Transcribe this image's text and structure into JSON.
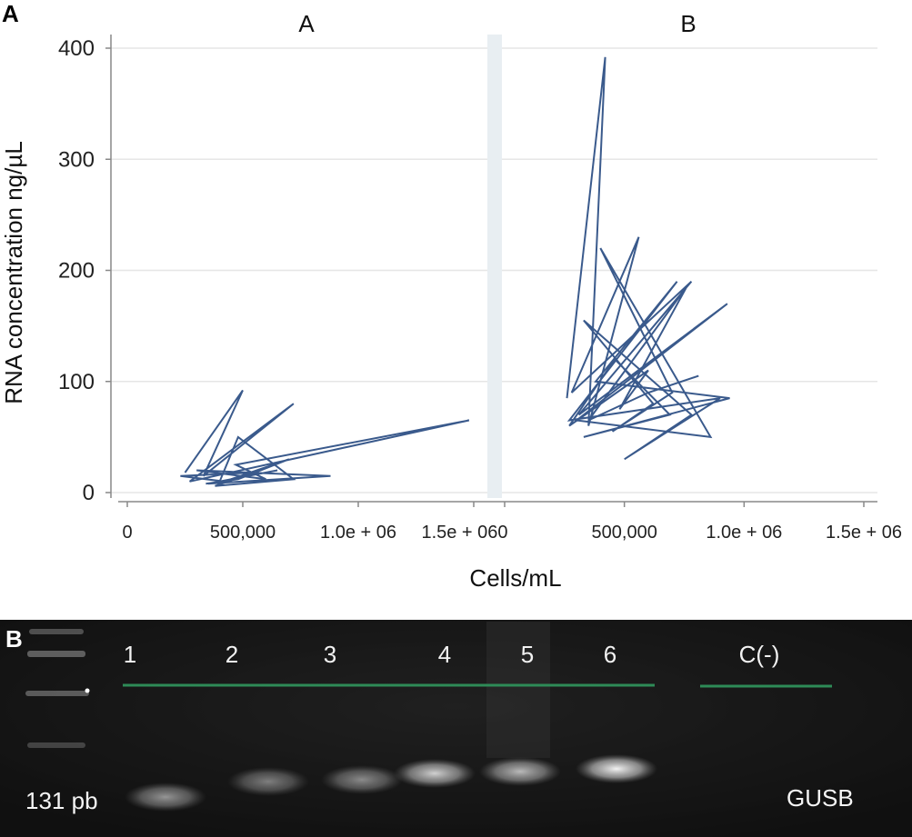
{
  "panel_a": {
    "letter": "A",
    "chart_data": {
      "type": "line",
      "facets": [
        {
          "name": "A",
          "x": [
            250000,
            500000,
            330000,
            720000,
            270000,
            1480000,
            470000,
            600000,
            300000,
            880000,
            350000,
            650000,
            400000,
            480000,
            720000,
            380000,
            550000,
            230000,
            420000,
            700000,
            480000,
            340000
          ],
          "y": [
            18,
            92,
            15,
            80,
            10,
            65,
            25,
            12,
            20,
            15,
            8,
            20,
            10,
            50,
            12,
            6,
            18,
            15,
            10,
            30,
            12,
            8
          ]
        },
        {
          "name": "B",
          "x": [
            260000,
            420000,
            350000,
            560000,
            280000,
            780000,
            310000,
            930000,
            300000,
            860000,
            400000,
            700000,
            450000,
            620000,
            330000,
            780000,
            500000,
            900000,
            270000,
            720000,
            380000,
            940000,
            330000,
            690000,
            460000,
            270000,
            600000,
            480000,
            760000,
            350000,
            600000,
            810000
          ],
          "y": [
            85,
            392,
            60,
            230,
            90,
            190,
            70,
            170,
            65,
            50,
            220,
            90,
            55,
            80,
            155,
            70,
            30,
            85,
            65,
            190,
            100,
            85,
            50,
            70,
            120,
            60,
            110,
            75,
            185,
            65,
            90,
            105
          ]
        }
      ],
      "ylabel": "RNA concentration ng/µL",
      "xlabel": "Cells/mL",
      "ylim": [
        0,
        400
      ],
      "xlim": [
        0,
        1500000
      ],
      "yticks": [
        "0",
        "100",
        "200",
        "300",
        "400"
      ],
      "xtick_labels_a": [
        "0",
        "500,000",
        "1.0e + 06",
        "1.5e + 060"
      ],
      "xtick_labels_b": [
        "500,000",
        "1.0e + 06",
        "1.5e + 06"
      ],
      "line_color": "#3a5a8c",
      "grid": "horizontal"
    }
  },
  "panel_b": {
    "letter": "B",
    "lanes": [
      "1",
      "2",
      "3",
      "4",
      "5",
      "6",
      "C(-)"
    ],
    "band_brightness": [
      0.55,
      0.45,
      0.5,
      0.8,
      0.7,
      0.95,
      0
    ],
    "size_label": "131 pb",
    "gene_label": "GUSB",
    "marker_line_color": "#2e8b57"
  }
}
